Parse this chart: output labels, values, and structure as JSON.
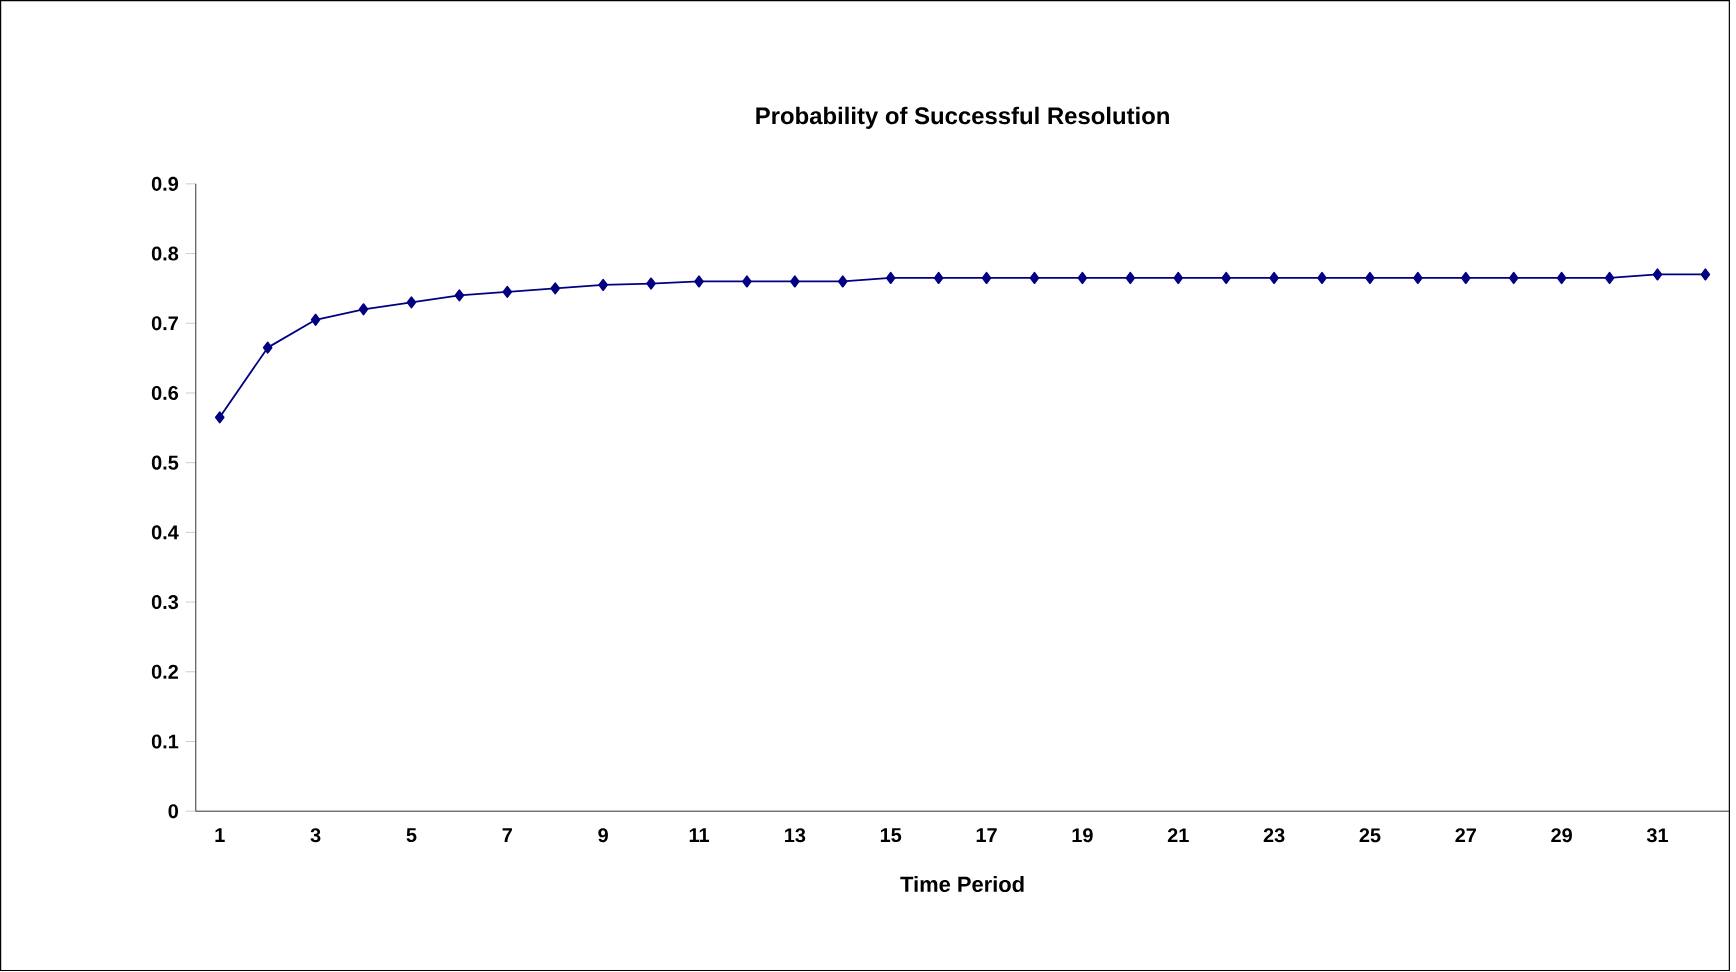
{
  "chart_data": {
    "type": "line",
    "title": "Probability of Successful Resolution",
    "xlabel": "Time Period",
    "categories": [
      "1",
      null,
      "3",
      null,
      "5",
      null,
      "7",
      null,
      "9",
      null,
      "11",
      null,
      "13",
      null,
      "15",
      null,
      "17",
      null,
      "19",
      null,
      "21",
      null,
      "23",
      null,
      "25",
      null,
      "27",
      null,
      "29",
      null,
      "31",
      null
    ],
    "series": [
      {
        "color": "#000080",
        "values": [
          0.565,
          0.665,
          0.705,
          0.72,
          0.73,
          0.74,
          0.745,
          0.75,
          0.755,
          0.757,
          0.76,
          0.76,
          0.76,
          0.76,
          0.765,
          0.765,
          0.765,
          0.765,
          0.765,
          0.765,
          0.765,
          0.765,
          0.765,
          0.765,
          0.765,
          0.765,
          0.765,
          0.765,
          0.765,
          0.765,
          0.77,
          0.77
        ]
      }
    ],
    "ylim": [
      0,
      0.9
    ],
    "yticks": [
      0,
      0.1,
      0.2,
      0.3,
      0.4,
      0.5,
      0.6,
      0.7,
      0.8,
      0.9
    ],
    "marker": "diamond",
    "line_style": "solid",
    "grid": false
  }
}
